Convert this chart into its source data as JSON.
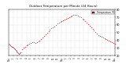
{
  "title": "Outdoor Temperature per Minute (24 Hours)",
  "background_color": "#ffffff",
  "plot_color": "#ff0000",
  "legend_label": "Temperature °F",
  "legend_color": "#ff0000",
  "ylim": [
    20,
    80
  ],
  "xlim": [
    0,
    1440
  ],
  "yticks": [
    20,
    30,
    40,
    50,
    60,
    70,
    80
  ],
  "xtick_labels": [
    "12a",
    "1",
    "2",
    "3",
    "4",
    "5",
    "6",
    "7",
    "8",
    "9",
    "10",
    "11",
    "12p",
    "1",
    "2",
    "3",
    "4",
    "5",
    "6",
    "7",
    "8",
    "9",
    "10",
    "11",
    "12a"
  ],
  "xtick_positions": [
    0,
    60,
    120,
    180,
    240,
    300,
    360,
    420,
    480,
    540,
    600,
    660,
    720,
    780,
    840,
    900,
    960,
    1020,
    1080,
    1140,
    1200,
    1260,
    1320,
    1380,
    1440
  ],
  "data_x": [
    0,
    10,
    20,
    30,
    40,
    50,
    60,
    70,
    80,
    90,
    100,
    110,
    120,
    130,
    140,
    150,
    160,
    180,
    200,
    220,
    240,
    260,
    280,
    300,
    320,
    340,
    360,
    380,
    400,
    420,
    440,
    460,
    480,
    500,
    520,
    540,
    560,
    580,
    600,
    620,
    640,
    660,
    680,
    700,
    720,
    740,
    760,
    780,
    800,
    820,
    840,
    860,
    880,
    900,
    920,
    940,
    960,
    980,
    1000,
    1020,
    1040,
    1060,
    1080,
    1100,
    1120,
    1140,
    1160,
    1180,
    1200,
    1220,
    1240,
    1260,
    1280,
    1300,
    1320,
    1340,
    1360,
    1380,
    1400,
    1420,
    1440
  ],
  "data_y": [
    36,
    35,
    34,
    33,
    32,
    31,
    30,
    29,
    28,
    27,
    26,
    25,
    24,
    23,
    22,
    23,
    24,
    28,
    30,
    32,
    34,
    35,
    36,
    37,
    38,
    38,
    37,
    38,
    39,
    40,
    42,
    44,
    46,
    48,
    50,
    52,
    54,
    56,
    57,
    58,
    60,
    62,
    63,
    64,
    65,
    66,
    67,
    68,
    69,
    70,
    71,
    72,
    73,
    73,
    73,
    72,
    71,
    70,
    68,
    67,
    65,
    63,
    61,
    59,
    57,
    55,
    53,
    51,
    49,
    47,
    46,
    45,
    44,
    43,
    42,
    41,
    40,
    39,
    38,
    37,
    36
  ]
}
